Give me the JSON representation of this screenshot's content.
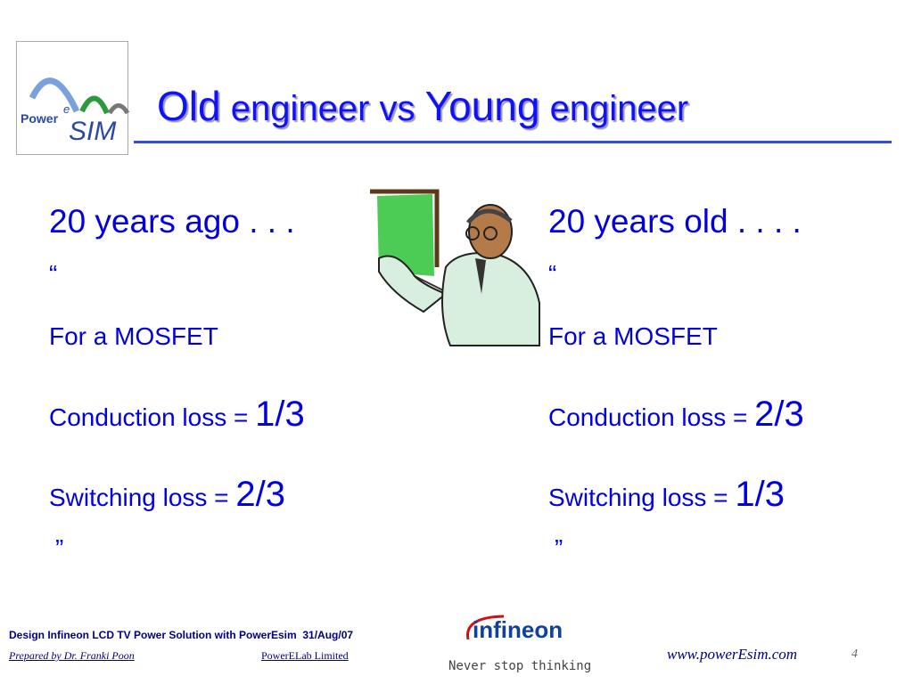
{
  "logo": {
    "power": "Power",
    "e": "e",
    "sim": "SIM"
  },
  "title": {
    "parts": [
      "Old",
      "engineer vs",
      "Young",
      "engineer"
    ]
  },
  "left": {
    "heading": "20 years ago . . .",
    "open_quote": "“",
    "line1": "For a MOSFET",
    "conduction_label": "Conduction loss =",
    "conduction_value": "1/3",
    "switching_label": "Switching loss =",
    "switching_value": "2/3",
    "close_quote": "”"
  },
  "right": {
    "heading": "20 years old . . . .",
    "open_quote": "“",
    "line1": "For a MOSFET",
    "conduction_label": "Conduction loss =",
    "conduction_value": "2/3",
    "switching_label": "Switching loss =",
    "switching_value": "1/3",
    "close_quote": "”"
  },
  "footer": {
    "title": "Design Infineon LCD TV Power Solution with PowerEsim  31/Aug/07",
    "prepared": "Prepared by Dr. Franki Poon",
    "company": "PowerELab Limited",
    "brand": "infineon",
    "slogan": "Never stop thinking",
    "url": "www.powerEsim.com",
    "page": "4"
  }
}
